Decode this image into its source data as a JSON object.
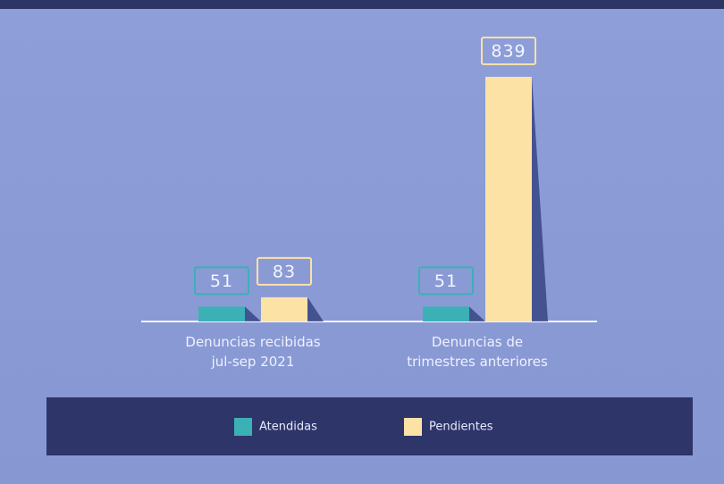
{
  "chart_data": {
    "type": "bar",
    "categories": [
      "Denuncias recibidas\njul-sep 2021",
      "Denuncias de\ntrimestres anteriores"
    ],
    "series": [
      {
        "name": "Atendidas",
        "color": "#3bb1b6",
        "values": [
          51,
          51
        ]
      },
      {
        "name": "Pendientes",
        "color": "#fde2a6",
        "values": [
          83,
          839
        ]
      }
    ],
    "legend": "bottom"
  }
}
